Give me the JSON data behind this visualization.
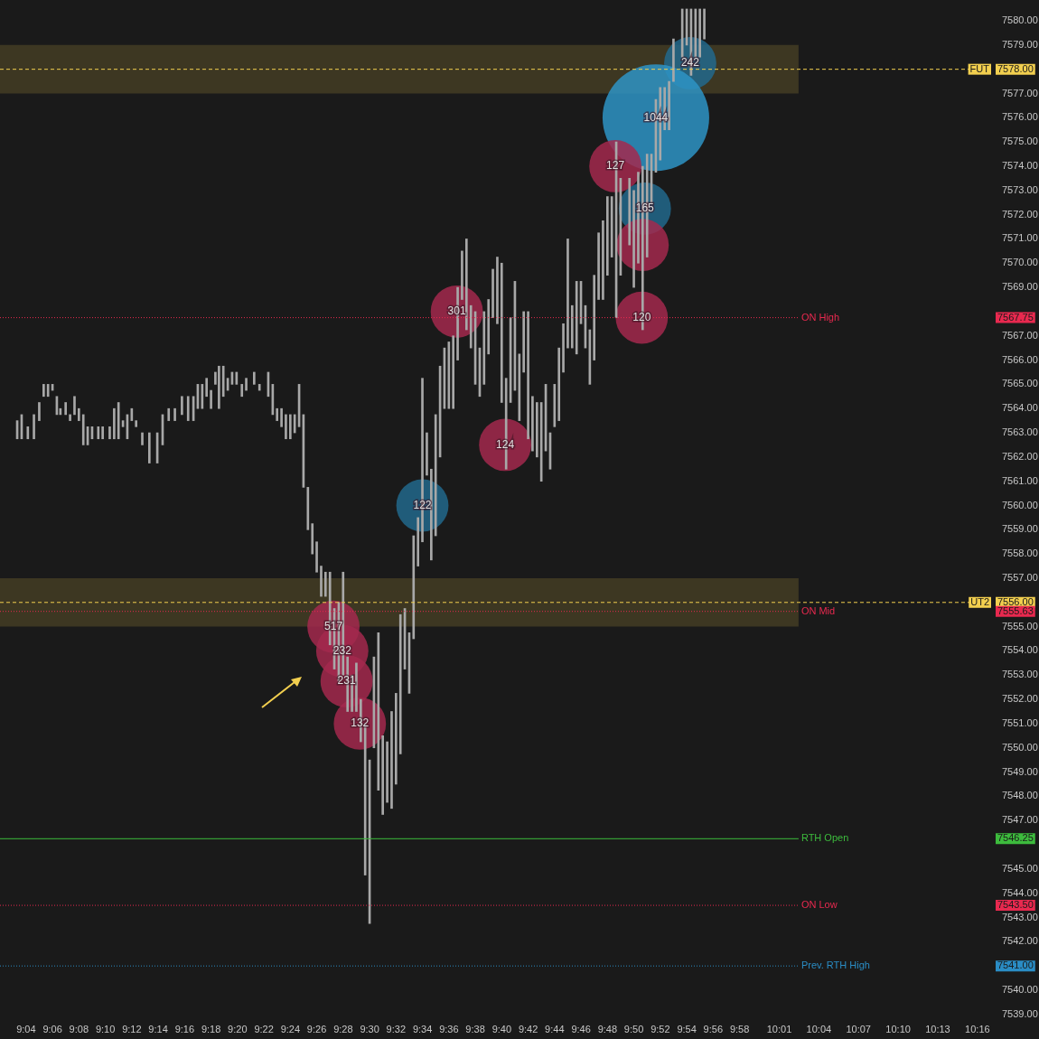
{
  "chart_data": {
    "type": "bar",
    "xlim": [
      9.0522,
      10.2667
    ],
    "xticks": [
      {
        "value": 9.0667,
        "label": "9:04"
      },
      {
        "value": 9.1,
        "label": "9:06"
      },
      {
        "value": 9.1333,
        "label": "9:08"
      },
      {
        "value": 9.1667,
        "label": "9:10"
      },
      {
        "value": 9.2,
        "label": "9:12"
      },
      {
        "value": 9.2333,
        "label": "9:14"
      },
      {
        "value": 9.2667,
        "label": "9:16"
      },
      {
        "value": 9.3,
        "label": "9:18"
      },
      {
        "value": 9.3333,
        "label": "9:20"
      },
      {
        "value": 9.3667,
        "label": "9:22"
      },
      {
        "value": 9.4,
        "label": "9:24"
      },
      {
        "value": 9.4333,
        "label": "9:26"
      },
      {
        "value": 9.4667,
        "label": "9:28"
      },
      {
        "value": 9.5,
        "label": "9:30"
      },
      {
        "value": 9.5333,
        "label": "9:32"
      },
      {
        "value": 9.5667,
        "label": "9:34"
      },
      {
        "value": 9.6,
        "label": "9:36"
      },
      {
        "value": 9.6333,
        "label": "9:38"
      },
      {
        "value": 9.6667,
        "label": "9:40"
      },
      {
        "value": 9.7,
        "label": "9:42"
      },
      {
        "value": 9.7333,
        "label": "9:44"
      },
      {
        "value": 9.7667,
        "label": "9:46"
      },
      {
        "value": 9.8,
        "label": "9:48"
      },
      {
        "value": 9.8333,
        "label": "9:50"
      },
      {
        "value": 9.8667,
        "label": "9:52"
      },
      {
        "value": 9.9,
        "label": "9:54"
      },
      {
        "value": 9.9333,
        "label": "9:56"
      },
      {
        "value": 9.9667,
        "label": "9:58"
      },
      {
        "value": 10.0167,
        "label": "10:01"
      },
      {
        "value": 10.0667,
        "label": "10:04"
      },
      {
        "value": 10.1167,
        "label": "10:07"
      },
      {
        "value": 10.1667,
        "label": "10:10"
      },
      {
        "value": 10.2167,
        "label": "10:13"
      },
      {
        "value": 10.2667,
        "label": "10:16"
      }
    ],
    "ylim": [
      7539,
      7580.5
    ],
    "yticks": [
      {
        "value": 7539,
        "label": "7539.00"
      },
      {
        "value": 7540,
        "label": "7540.00"
      },
      {
        "value": 7542,
        "label": "7542.00"
      },
      {
        "value": 7543,
        "label": "7543.00"
      },
      {
        "value": 7544,
        "label": "7544.00"
      },
      {
        "value": 7545,
        "label": "7545.00"
      },
      {
        "value": 7547,
        "label": "7547.00"
      },
      {
        "value": 7548,
        "label": "7548.00"
      },
      {
        "value": 7549,
        "label": "7549.00"
      },
      {
        "value": 7550,
        "label": "7550.00"
      },
      {
        "value": 7551,
        "label": "7551.00"
      },
      {
        "value": 7552,
        "label": "7552.00"
      },
      {
        "value": 7553,
        "label": "7553.00"
      },
      {
        "value": 7554,
        "label": "7554.00"
      },
      {
        "value": 7555,
        "label": "7555.00"
      },
      {
        "value": 7557,
        "label": "7557.00"
      },
      {
        "value": 7558,
        "label": "7558.00"
      },
      {
        "value": 7559,
        "label": "7559.00"
      },
      {
        "value": 7560,
        "label": "7560.00"
      },
      {
        "value": 7561,
        "label": "7561.00"
      },
      {
        "value": 7562,
        "label": "7562.00"
      },
      {
        "value": 7563,
        "label": "7563.00"
      },
      {
        "value": 7564,
        "label": "7564.00"
      },
      {
        "value": 7565,
        "label": "7565.00"
      },
      {
        "value": 7566,
        "label": "7566.00"
      },
      {
        "value": 7567,
        "label": "7567.00"
      },
      {
        "value": 7569,
        "label": "7569.00"
      },
      {
        "value": 7570,
        "label": "7570.00"
      },
      {
        "value": 7571,
        "label": "7571.00"
      },
      {
        "value": 7572,
        "label": "7572.00"
      },
      {
        "value": 7573,
        "label": "7573.00"
      },
      {
        "value": 7574,
        "label": "7574.00"
      },
      {
        "value": 7575,
        "label": "7575.00"
      },
      {
        "value": 7576,
        "label": "7576.00"
      },
      {
        "value": 7577,
        "label": "7577.00"
      },
      {
        "value": 7579,
        "label": "7579.00"
      },
      {
        "value": 7580,
        "label": "7580.00"
      }
    ],
    "series": [
      {
        "color": "#a8a8a8",
        "x": [
          9.0555,
          9.0611,
          9.0689,
          9.0766,
          9.0833,
          9.0889,
          9.0944,
          9.1,
          9.1055,
          9.11,
          9.1166,
          9.1222,
          9.1278,
          9.1333,
          9.1389,
          9.1444,
          9.15,
          9.1578,
          9.1633,
          9.1722,
          9.1778,
          9.1833,
          9.1889,
          9.1944,
          9.2,
          9.2055,
          9.2133,
          9.2222,
          9.2322,
          9.2389,
          9.2466,
          9.2544,
          9.2633,
          9.2711,
          9.2778,
          9.2833,
          9.2889,
          9.2944,
          9.3,
          9.3055,
          9.31,
          9.3155,
          9.3211,
          9.3266,
          9.3322,
          9.3389,
          9.3444,
          9.3544,
          9.3611,
          9.3722,
          9.3778,
          9.3833,
          9.3889,
          9.3944,
          9.4,
          9.4055,
          9.4111,
          9.4166,
          9.4222,
          9.4278,
          9.4333,
          9.4389,
          9.4444,
          9.45,
          9.4555,
          9.4611,
          9.4666,
          9.4722,
          9.4778,
          9.4833,
          9.4889,
          9.4944,
          9.5,
          9.5055,
          9.5111,
          9.5166,
          9.5222,
          9.5278,
          9.5333,
          9.5389,
          9.5444,
          9.55,
          9.5555,
          9.5611,
          9.5666,
          9.5722,
          9.5778,
          9.5833,
          9.5889,
          9.5944,
          9.6,
          9.6055,
          9.6111,
          9.6166,
          9.6222,
          9.6278,
          9.6333,
          9.6389,
          9.6444,
          9.65,
          9.6555,
          9.6611,
          9.6666,
          9.6722,
          9.6778,
          9.6833,
          9.6889,
          9.6944,
          9.7,
          9.7055,
          9.7111,
          9.7166,
          9.7222,
          9.7278,
          9.7333,
          9.7389,
          9.7444,
          9.75,
          9.7555,
          9.7611,
          9.7666,
          9.7722,
          9.7778,
          9.7833,
          9.7889,
          9.7944,
          9.8,
          9.8055,
          9.8111,
          9.8166,
          9.8278,
          9.8333,
          9.8389,
          9.8444,
          9.85,
          9.8555,
          9.8611,
          9.8666,
          9.8722,
          9.8778,
          9.8833,
          9.8944,
          9.9,
          9.9055,
          9.9111,
          9.9166,
          9.9222
        ],
        "base": [
          7562.75,
          7562.75,
          7562.75,
          7562.75,
          7563.5,
          7564.5,
          7564.5,
          7564.75,
          7563.75,
          7563.75,
          7563.75,
          7563.5,
          7563.75,
          7563.5,
          7562.5,
          7562.5,
          7562.75,
          7562.75,
          7562.75,
          7562.75,
          7562.75,
          7562.75,
          7563.25,
          7562.75,
          7563.5,
          7563.25,
          7562.5,
          7561.75,
          7561.75,
          7562.5,
          7563.5,
          7563.5,
          7563.75,
          7563.5,
          7563.5,
          7564,
          7564,
          7564.5,
          7564,
          7565,
          7564,
          7564.5,
          7564.75,
          7565,
          7565,
          7564.5,
          7564.75,
          7565,
          7564.75,
          7564.5,
          7563.75,
          7563.5,
          7563.25,
          7562.75,
          7562.75,
          7563,
          7563.25,
          7560.75,
          7559,
          7558,
          7557.25,
          7556.25,
          7556.25,
          7554.25,
          7553.25,
          7552.75,
          7553,
          7551.5,
          7551.5,
          7551.5,
          7550.25,
          7544.75,
          7542.75,
          7550,
          7548.25,
          7547.25,
          7547.75,
          7547.5,
          7548.5,
          7549.75,
          7553.25,
          7552.25,
          7554.5,
          7557.5,
          7558.5,
          7561.25,
          7557.75,
          7558.75,
          7562,
          7564,
          7564,
          7564,
          7566,
          7568.5,
          7567.25,
          7566.5,
          7565,
          7564.5,
          7565,
          7566.25,
          7567.75,
          7567.5,
          7564.25,
          7561.5,
          7564.25,
          7564.75,
          7563.5,
          7565.5,
          7562.75,
          7562.25,
          7562,
          7561,
          7562.25,
          7561.5,
          7563.25,
          7563.5,
          7565.5,
          7566.5,
          7566.5,
          7566.25,
          7567.5,
          7566.5,
          7565,
          7566,
          7568.5,
          7568.5,
          7569.5,
          7570.25,
          7567.75,
          7569.5,
          7570.75,
          7569,
          7570,
          7567.25,
          7570.25,
          7572.5,
          7573.75,
          7574.25,
          7575.5,
          7575.5,
          7577.5,
          7578.5,
          7579,
          7577.75,
          7578.5,
          7578.5,
          7579.25
        ],
        "values": [
          0.75,
          1,
          0.5,
          1,
          0.75,
          0.5,
          0.5,
          0.25,
          0.75,
          0.25,
          0.5,
          0.25,
          0.75,
          0.5,
          1.25,
          0.75,
          0.5,
          0.5,
          0.5,
          0.5,
          1.25,
          1.5,
          0.25,
          1,
          0.5,
          0.25,
          0.5,
          1.25,
          1.25,
          1.25,
          0.5,
          0.5,
          0.75,
          1,
          1,
          1,
          1,
          0.75,
          0.75,
          0.5,
          1.75,
          1.25,
          0.5,
          0.5,
          0.5,
          0.5,
          0.5,
          0.5,
          0.25,
          1,
          1.25,
          0.5,
          0.75,
          1,
          1,
          0.75,
          1.75,
          3,
          1.75,
          1.25,
          1.25,
          1.25,
          1,
          3,
          2.5,
          3.25,
          4.25,
          2.25,
          1.5,
          2,
          1.75,
          6.25,
          6.75,
          3.75,
          6.5,
          3.25,
          2.5,
          4,
          3.75,
          5.75,
          2.5,
          2.5,
          4.25,
          2,
          6.75,
          1.75,
          3.75,
          5,
          3.75,
          2.5,
          2.75,
          3,
          3,
          2,
          3.75,
          1.75,
          3,
          2,
          3,
          2.25,
          2,
          2.75,
          5.75,
          3.75,
          3.5,
          4.5,
          2.75,
          2.5,
          5.25,
          2.25,
          2.25,
          3.25,
          2.75,
          1.5,
          1.75,
          3,
          2,
          4.5,
          1.75,
          3,
          1.75,
          1.75,
          2.25,
          3.5,
          2.75,
          3.25,
          3.25,
          2.5,
          7.25,
          4,
          2.75,
          4,
          3.75,
          6.75,
          4.25,
          2,
          3,
          3,
          1.75,
          2,
          1.75,
          2,
          1.5,
          2.75,
          2,
          2,
          1.25
        ]
      },
      {
        "type": "bubble",
        "x": [
          9.9044,
          9.8611,
          9.81,
          9.8472,
          9.8444,
          9.8433,
          9.61,
          9.671,
          9.5666,
          9.4544,
          9.4655,
          9.471,
          9.4877
        ],
        "values": [
          7578.25,
          7576,
          7574,
          7572.25,
          7570.75,
          7567.75,
          7568,
          7562.5,
          7560,
          7555,
          7554,
          7552.75,
          7551
        ],
        "sizes": [
          0.24,
          1,
          0.24,
          0.24,
          0.24,
          0.24,
          0.24,
          0.24,
          0.24,
          0.24,
          0.24,
          0.24,
          0.24
        ],
        "colors": [
          "#22698c",
          "#2e94c6",
          "#a3294d",
          "#22698c",
          "#a3294d",
          "#a3294d",
          "#a3294d",
          "#a3294d",
          "#22698c",
          "#a3294d",
          "#a3294d",
          "#a3294d",
          "#a3294d"
        ]
      }
    ],
    "annotations": [
      {
        "text": "242",
        "x": 9.9044,
        "y": 7578.25
      },
      {
        "text": "1044",
        "x": 9.8611,
        "y": 7576
      },
      {
        "text": "127",
        "x": 9.81,
        "y": 7574
      },
      {
        "text": "165",
        "x": 9.8472,
        "y": 7572.25
      },
      {
        "text": "120",
        "x": 9.8433,
        "y": 7567.75
      },
      {
        "text": "301",
        "x": 9.61,
        "y": 7568
      },
      {
        "text": "124",
        "x": 9.671,
        "y": 7562.5
      },
      {
        "text": "122",
        "x": 9.5666,
        "y": 7560
      },
      {
        "text": "517",
        "x": 9.4544,
        "y": 7555
      },
      {
        "text": "232",
        "x": 9.4655,
        "y": 7554
      },
      {
        "text": "231",
        "x": 9.471,
        "y": 7552.75
      },
      {
        "text": "132",
        "x": 9.4877,
        "y": 7551
      },
      "7578.00",
      "7567.75",
      "7556.00",
      "7555.63",
      "7546.25",
      "7543.50",
      "7541.00"
    ],
    "ref_lines": [
      {
        "axis": "y",
        "value": 7578,
        "label": "FUT",
        "color": "#f2cf4f",
        "line_style": "dashed"
      },
      {
        "axis": "y",
        "value": 7567.75,
        "label": "ON High",
        "color": "#e8294f",
        "line_style": "dotted"
      },
      {
        "axis": "y",
        "value": 7556,
        "label": "UT2",
        "color": "#f2cf4f",
        "line_style": "dashed"
      },
      {
        "axis": "y",
        "value": 7555.63,
        "label": "ON Mid",
        "color": "#e8294f",
        "line_style": "dotted"
      },
      {
        "axis": "y",
        "value": 7546.25,
        "label": "RTH Open",
        "color": "#3dbb3d",
        "line_style": "solid"
      },
      {
        "axis": "y",
        "value": 7543.5,
        "label": "ON Low",
        "color": "#e8294f",
        "line_style": "dotted"
      },
      {
        "axis": "y",
        "value": 7541,
        "label": "Prev. RTH High",
        "color": "#2a8cc4",
        "line_style": "dotted"
      }
    ],
    "bands": [
      {
        "axis": "y",
        "from": 7577,
        "to": 7579,
        "color": "#4a4226"
      },
      {
        "axis": "y",
        "from": 7555,
        "to": 7557,
        "color": "#4a4226"
      }
    ]
  }
}
